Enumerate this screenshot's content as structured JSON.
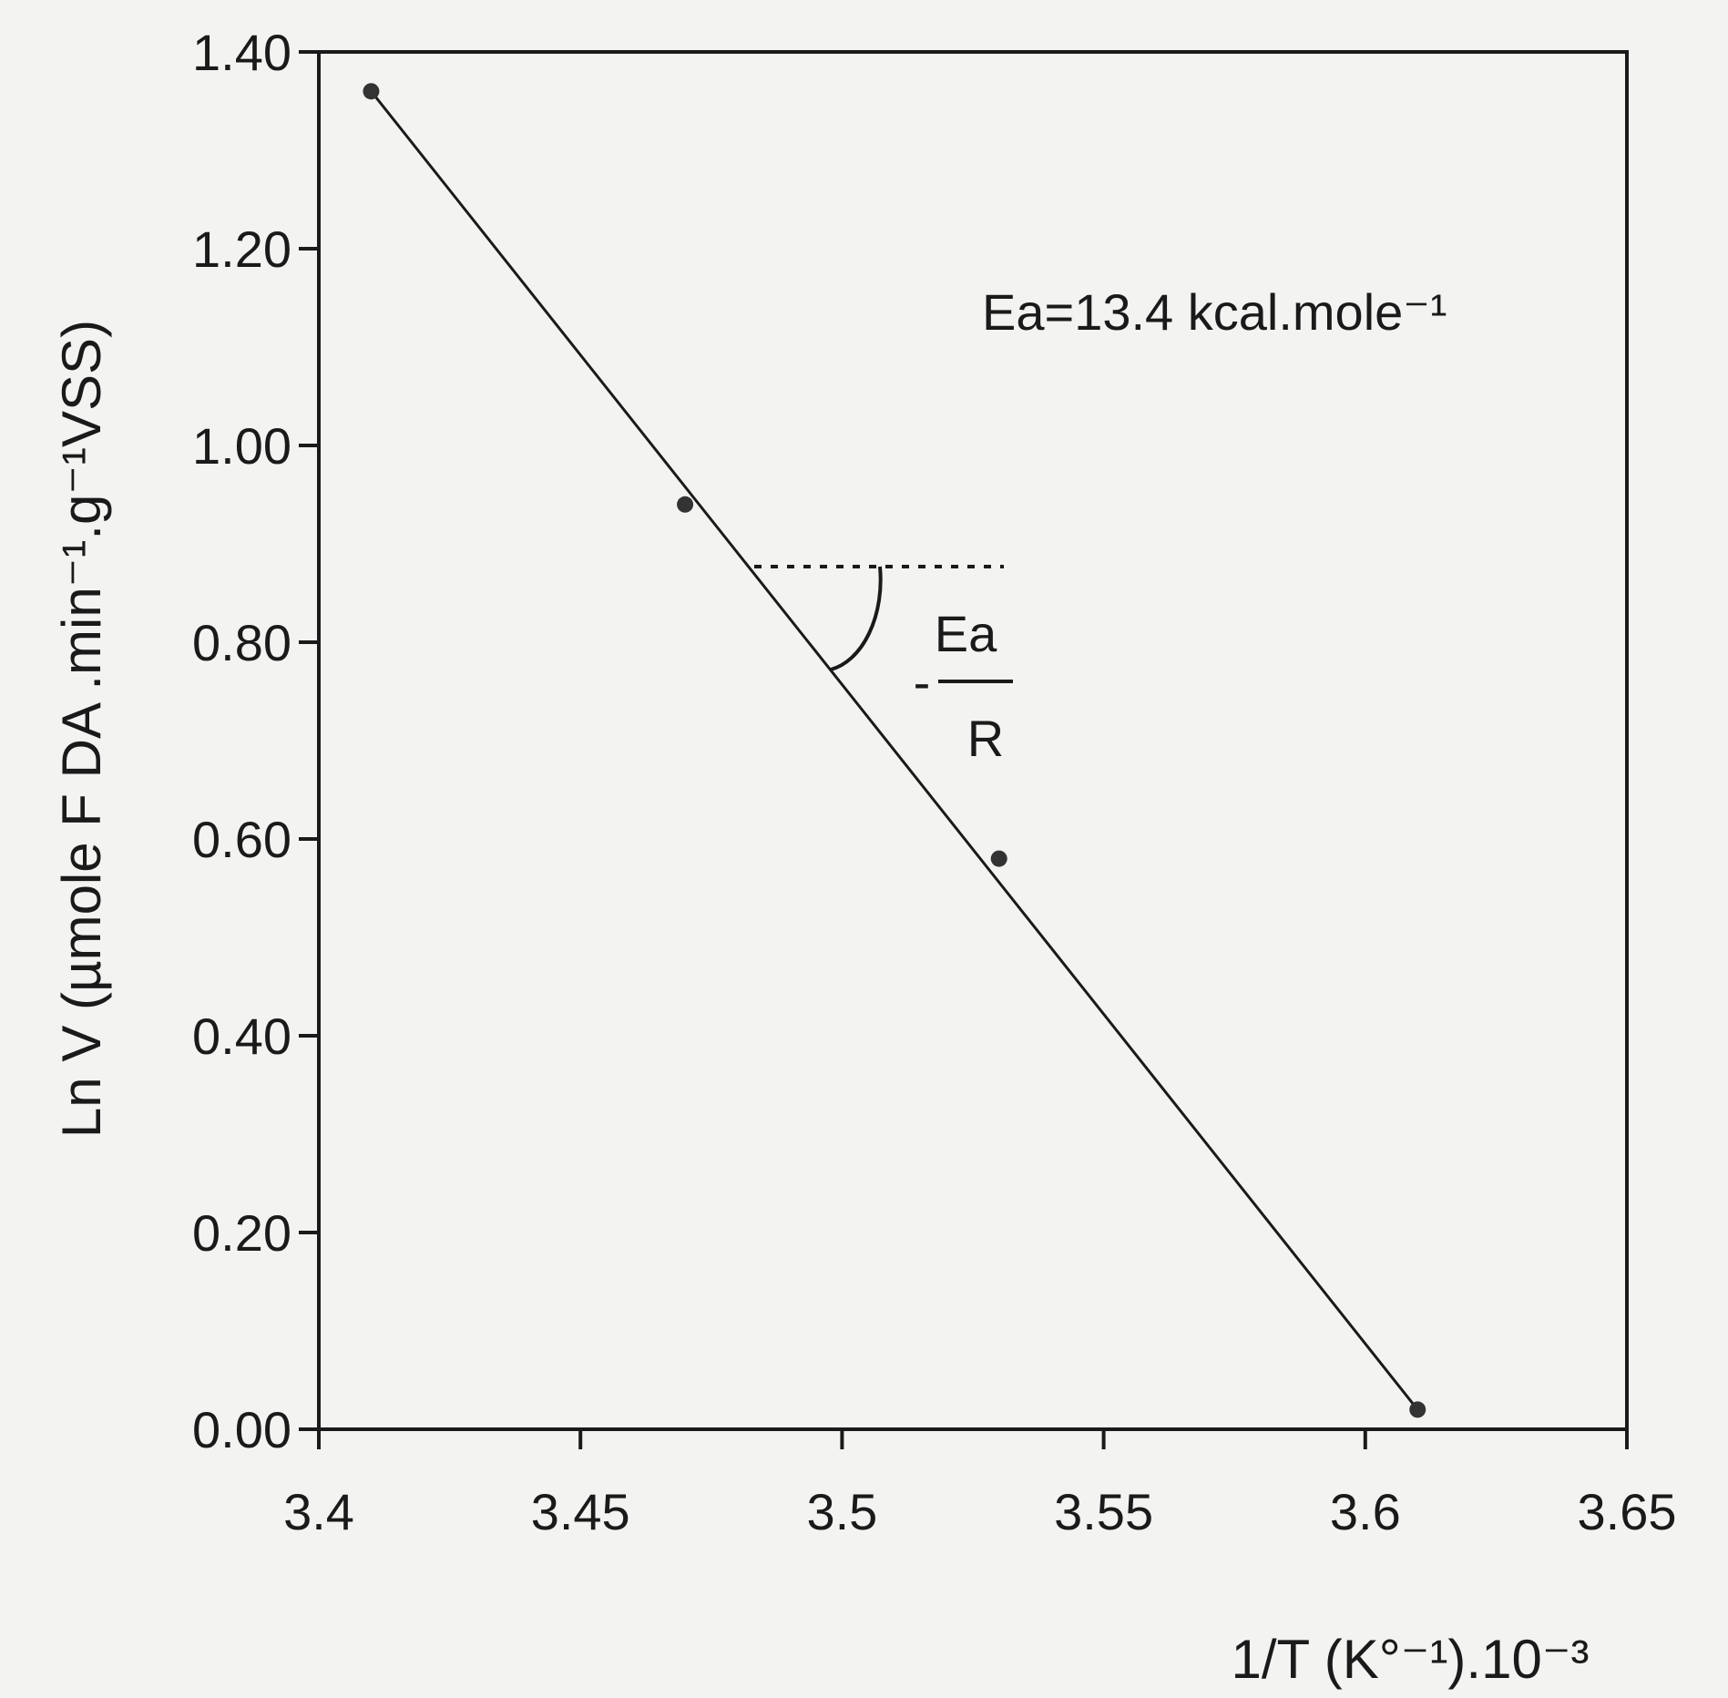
{
  "chart_data": {
    "type": "scatter",
    "x": [
      3.41,
      3.47,
      3.53,
      3.61
    ],
    "y": [
      1.36,
      0.94,
      0.58,
      0.02
    ],
    "fit_line": {
      "x": [
        3.41,
        3.61
      ],
      "y": [
        1.36,
        0.02
      ]
    },
    "xlim": [
      3.4,
      3.65
    ],
    "ylim": [
      0.0,
      1.4
    ],
    "x_ticks": [
      3.4,
      3.45,
      3.5,
      3.55,
      3.6,
      3.65
    ],
    "y_ticks": [
      0.0,
      0.2,
      0.4,
      0.6,
      0.8,
      1.0,
      1.2,
      1.4
    ],
    "x_tick_labels": [
      "3.4",
      "3.45",
      "3.5",
      "3.55",
      "3.6",
      "3.65"
    ],
    "y_tick_labels": [
      "0.00",
      "0.20",
      "0.40",
      "0.60",
      "0.80",
      "1.00",
      "1.20",
      "1.40"
    ],
    "xlabel": "1/T (K°⁻¹).10⁻³",
    "ylabel": "Ln V (µmole F DA .min⁻¹.g⁻¹VSS)",
    "grid": false,
    "annotations": {
      "equation": "Ea=13.4 kcal.mole⁻¹",
      "slope_numerator": "Ea",
      "slope_denominator": "R",
      "slope_sign": "-"
    },
    "colors": {
      "ink": "#1a1a1a",
      "paper": "#f3f3f1"
    }
  }
}
